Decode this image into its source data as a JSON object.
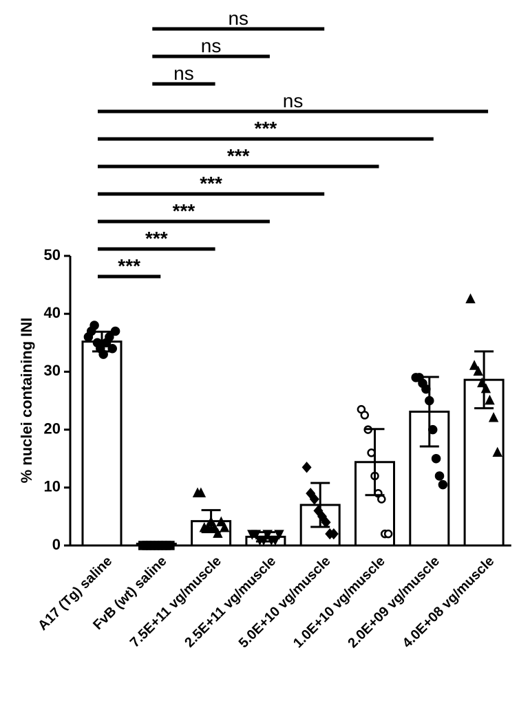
{
  "chart_data": {
    "type": "bar",
    "y_label": "% nuclei containing INI",
    "categories": [
      "A17 (Tg) saline",
      "FvB (wt) saline",
      "7.5E+11 vg/muscle",
      "2.5E+11 vg/muscle",
      "5.0E+10 vg/muscle",
      "1.0E+10 vg/muscle",
      "2.0E+09 vg/muscle",
      "4.0E+08 vg/muscle"
    ],
    "values": [
      35.2,
      0.3,
      4.2,
      1.5,
      7.0,
      14.4,
      23.1,
      28.6
    ],
    "errors": [
      1.7,
      0.3,
      1.9,
      0.8,
      3.8,
      5.7,
      6.0,
      4.9
    ],
    "points": [
      [
        36,
        37,
        38,
        35,
        34,
        33,
        35,
        36,
        34,
        37
      ],
      [
        0,
        0,
        0,
        0,
        0,
        0,
        0,
        0
      ],
      [
        9,
        9,
        3,
        3,
        4,
        3,
        2,
        4,
        3
      ],
      [
        2,
        2,
        1,
        1,
        2,
        1,
        1,
        2
      ],
      [
        13.5,
        9,
        8,
        6,
        5,
        4,
        2,
        2
      ],
      [
        23.5,
        22.5,
        20,
        16,
        12,
        9,
        8,
        2,
        2
      ],
      [
        29,
        29,
        28,
        27,
        25,
        20,
        15,
        12,
        10.5
      ],
      [
        42.5,
        31,
        30,
        28,
        27,
        25,
        22,
        16
      ]
    ],
    "markers": [
      "circle",
      "square",
      "triangle",
      "triangle-down",
      "diamond",
      "open-circle",
      "circle",
      "triangle"
    ],
    "color": "#000000",
    "bar_fill": "#ffffff",
    "ylim": [
      0,
      50
    ],
    "yticks": [
      0,
      10,
      20,
      30,
      40,
      50
    ],
    "comparisons": [
      {
        "from": 1,
        "to": 4,
        "label": "ns"
      },
      {
        "from": 1,
        "to": 3,
        "label": "ns"
      },
      {
        "from": 1,
        "to": 2,
        "label": "ns"
      },
      {
        "from": 0,
        "to": 7,
        "label": "ns"
      },
      {
        "from": 0,
        "to": 6,
        "label": "***"
      },
      {
        "from": 0,
        "to": 5,
        "label": "***"
      },
      {
        "from": 0,
        "to": 4,
        "label": "***"
      },
      {
        "from": 0,
        "to": 3,
        "label": "***"
      },
      {
        "from": 0,
        "to": 2,
        "label": "***"
      },
      {
        "from": 0,
        "to": 1,
        "label": "***"
      }
    ]
  }
}
